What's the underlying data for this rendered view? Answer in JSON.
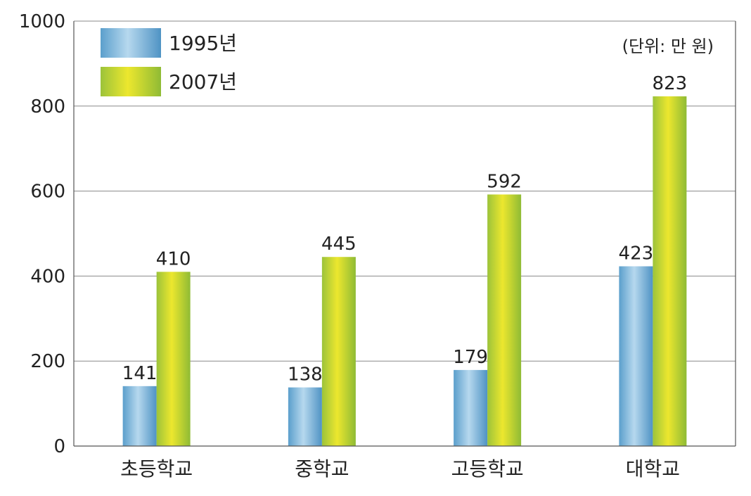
{
  "chart_data": {
    "type": "bar",
    "categories": [
      "초등학교",
      "중학교",
      "고등학교",
      "대학교"
    ],
    "series": [
      {
        "name": "1995년",
        "values": [
          141,
          138,
          179,
          423
        ],
        "color": "#6aaed8"
      },
      {
        "name": "2007년",
        "values": [
          410,
          445,
          592,
          823
        ],
        "color": "#c8d63a"
      }
    ],
    "unit_note": "(단위: 만 원)",
    "ylim": [
      0,
      1000
    ],
    "yticks": [
      0,
      200,
      400,
      600,
      800,
      1000
    ],
    "grid": true,
    "legend": "top-left"
  }
}
